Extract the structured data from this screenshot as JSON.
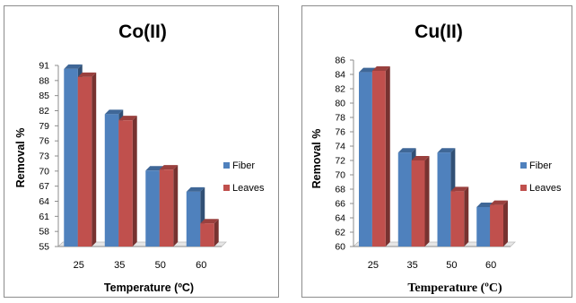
{
  "chart_data": [
    {
      "type": "bar",
      "title": "Co(II)",
      "xlabel": "Temperature (ºC)",
      "ylabel": "Removal %",
      "categories": [
        "25",
        "35",
        "50",
        "60"
      ],
      "ylim": [
        55,
        91
      ],
      "yticks": [
        "55",
        "58",
        "61",
        "64",
        "67",
        "70",
        "73",
        "76",
        "79",
        "82",
        "85",
        "88",
        "91"
      ],
      "series": [
        {
          "name": "Fiber",
          "values": [
            90.3,
            81.3,
            70.1,
            65.9
          ],
          "color": "#4f81bd"
        },
        {
          "name": "Leaves",
          "values": [
            88.7,
            80.1,
            70.3,
            59.6
          ],
          "color": "#c0504d"
        }
      ],
      "legend": "right",
      "grid": false
    },
    {
      "type": "bar",
      "title": "Cu(II)",
      "xlabel": "Temperature (ºC)",
      "ylabel": "Removal %",
      "categories": [
        "25",
        "35",
        "50",
        "60"
      ],
      "ylim": [
        60,
        86
      ],
      "yticks": [
        "60",
        "62",
        "64",
        "66",
        "68",
        "70",
        "72",
        "74",
        "76",
        "78",
        "80",
        "82",
        "84",
        "86"
      ],
      "series": [
        {
          "name": "Fiber",
          "values": [
            84.3,
            73.1,
            73.1,
            65.5
          ],
          "color": "#4f81bd"
        },
        {
          "name": "Leaves",
          "values": [
            84.5,
            72.0,
            67.7,
            65.8
          ],
          "color": "#c0504d"
        }
      ],
      "legend": "right",
      "grid": false
    }
  ]
}
